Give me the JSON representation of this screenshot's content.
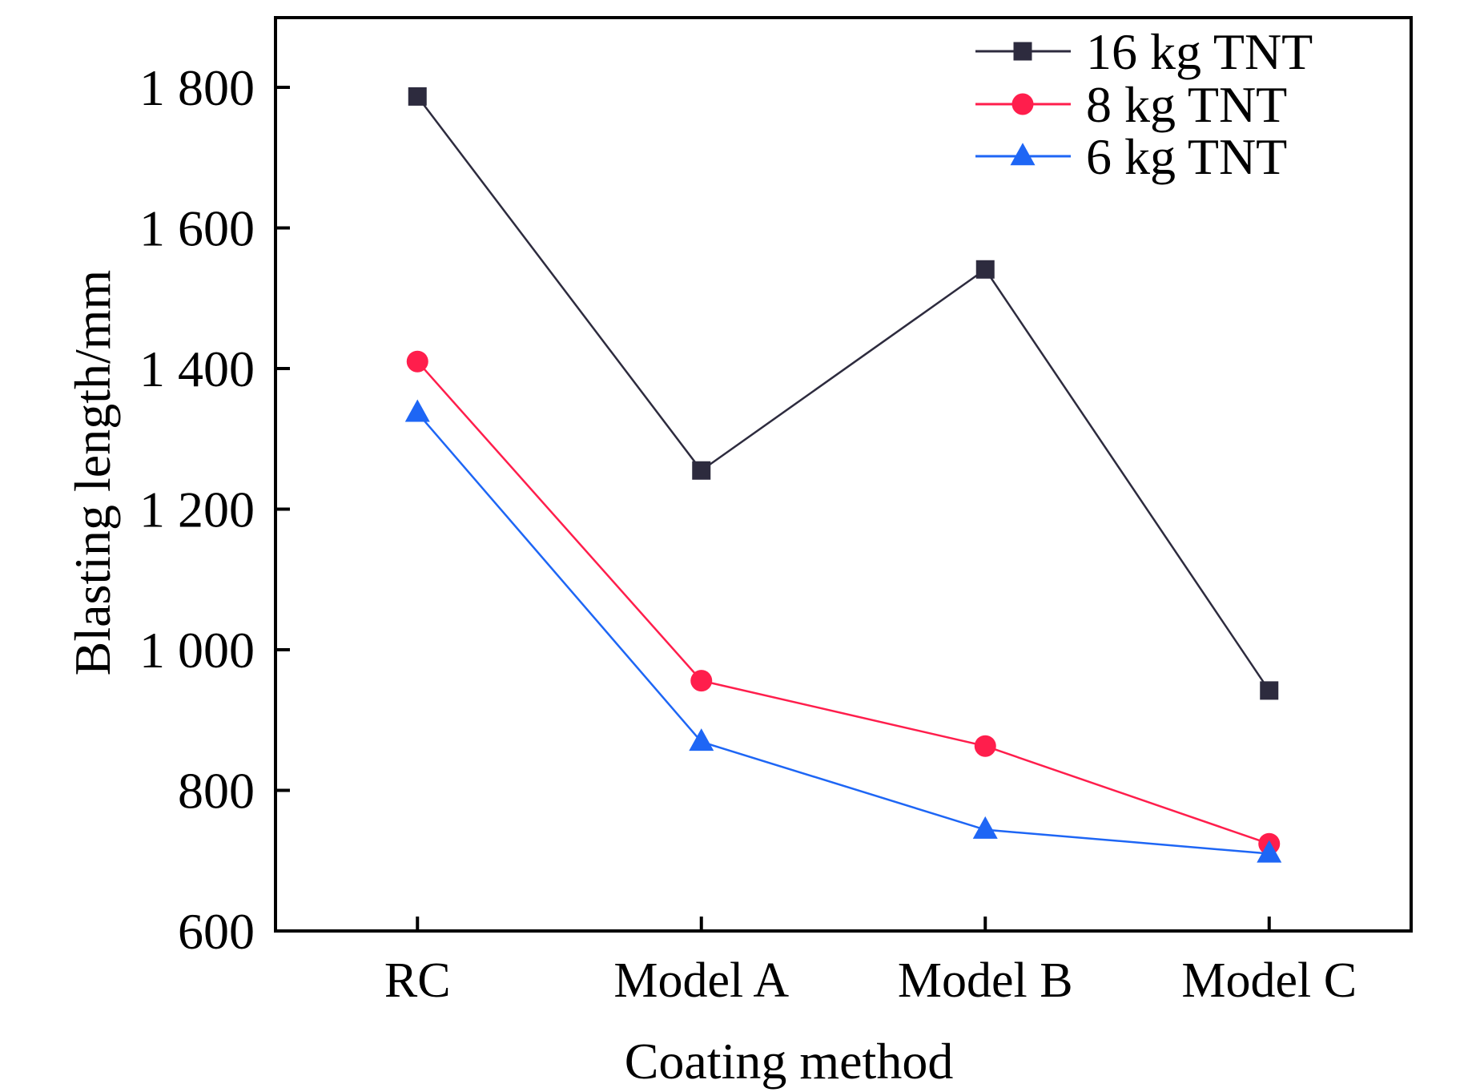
{
  "chart_data": {
    "type": "line",
    "title": "",
    "xlabel": "Coating method",
    "ylabel": "Blasting length/mm",
    "categories": [
      "RC",
      "Model A",
      "Model B",
      "Model C"
    ],
    "ylim": [
      600,
      1900
    ],
    "yticks": [
      600,
      800,
      1000,
      1200,
      1400,
      1600,
      1800
    ],
    "ytick_labels": [
      "600",
      "800",
      "1 000",
      "1 200",
      "1 400",
      "1 600",
      "1 800"
    ],
    "grid": false,
    "legend_position": "top-right",
    "series": [
      {
        "name": "16 kg TNT",
        "marker": "square",
        "color": "#2D2B3E",
        "values": [
          1787,
          1255,
          1541,
          942
        ]
      },
      {
        "name": "8 kg TNT",
        "marker": "circle",
        "color": "#FF1E4C",
        "values": [
          1410,
          956,
          863,
          724
        ]
      },
      {
        "name": "6 kg TNT",
        "marker": "triangle",
        "color": "#1E66F5",
        "values": [
          1337,
          869,
          744,
          710
        ]
      }
    ]
  }
}
